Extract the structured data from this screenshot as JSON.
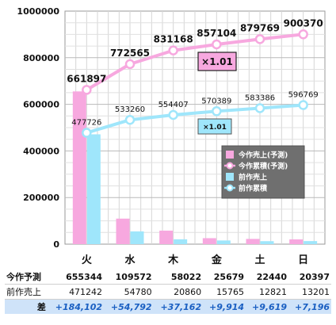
{
  "chart_data": {
    "type": "bar+line",
    "categories": [
      "火",
      "水",
      "木",
      "金",
      "土",
      "日"
    ],
    "ylim": [
      0,
      1000000
    ],
    "yticks": [
      "0",
      "200000",
      "400000",
      "600000",
      "800000",
      "1000000"
    ],
    "grid": true,
    "legend_position": "right",
    "series": [
      {
        "name": "今作売上(予測)",
        "kind": "bar",
        "color": "#f7a8df",
        "values": [
          655344,
          109572,
          58022,
          25679,
          22440,
          20397
        ]
      },
      {
        "name": "前作売上",
        "kind": "bar",
        "color": "#9fe6fb",
        "values": [
          471242,
          54780,
          20860,
          15765,
          12821,
          13201
        ]
      },
      {
        "name": "今作累積(予測)",
        "kind": "line",
        "color": "#f7a8df",
        "values": [
          661897,
          772565,
          831168,
          857104,
          879769,
          900370
        ],
        "labels": [
          "661897",
          "772565",
          "831168",
          "857104",
          "879769",
          "900370"
        ]
      },
      {
        "name": "前作累積",
        "kind": "line",
        "color": "#9fe6fb",
        "values": [
          477726,
          533260,
          554407,
          570389,
          583386,
          596769
        ],
        "labels": [
          "477726",
          "533260",
          "554407",
          "570389",
          "583386",
          "596769"
        ]
      }
    ],
    "annotations": [
      {
        "text": "×1.01",
        "color": "#f7a8df"
      },
      {
        "text": "×1.01",
        "color": "#9fe6fb"
      }
    ]
  },
  "table": {
    "rows": [
      {
        "label": "今作予測",
        "cells": [
          "655344",
          "109572",
          "58022",
          "25679",
          "22440",
          "20397"
        ]
      },
      {
        "label": "前作売上",
        "cells": [
          "471242",
          "54780",
          "20860",
          "15765",
          "12821",
          "13201"
        ]
      },
      {
        "label": "差",
        "cells": [
          "+184,102",
          "+54,792",
          "+37,162",
          "+9,914",
          "+9,619",
          "+7,196"
        ]
      }
    ]
  }
}
